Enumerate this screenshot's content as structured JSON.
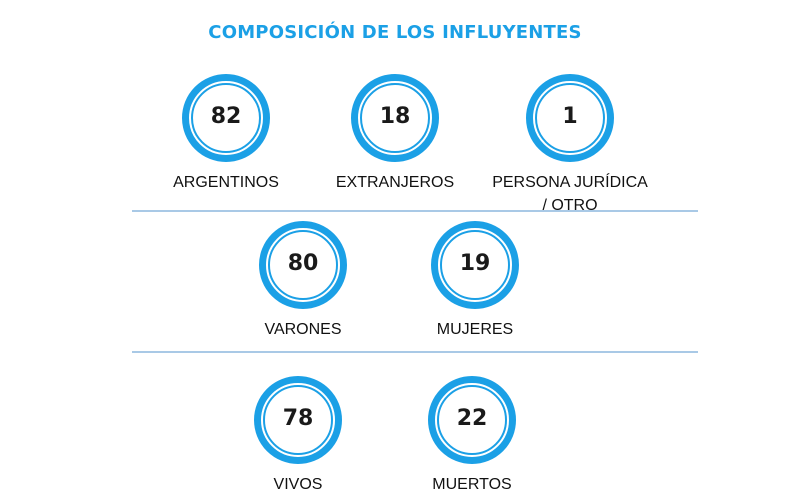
{
  "title": "COMPOSICIÓN DE LOS INFLUYENTES",
  "colors": {
    "accent": "#1ba0e6",
    "divider": "#a9c9e6",
    "text": "#111111"
  },
  "groups": [
    {
      "stats": [
        {
          "value": "82",
          "label_lines": [
            "ARGENTINOS"
          ]
        },
        {
          "value": "18",
          "label_lines": [
            "EXTRANJEROS"
          ]
        },
        {
          "value": "1",
          "label_lines": [
            "PERSONA JURÍDICA",
            "/ OTRO"
          ]
        }
      ]
    },
    {
      "stats": [
        {
          "value": "80",
          "label_lines": [
            "VARONES"
          ]
        },
        {
          "value": "19",
          "label_lines": [
            "MUJERES"
          ]
        }
      ]
    },
    {
      "stats": [
        {
          "value": "78",
          "label_lines": [
            "VIVOS"
          ]
        },
        {
          "value": "22",
          "label_lines": [
            "MUERTOS"
          ]
        }
      ]
    }
  ]
}
